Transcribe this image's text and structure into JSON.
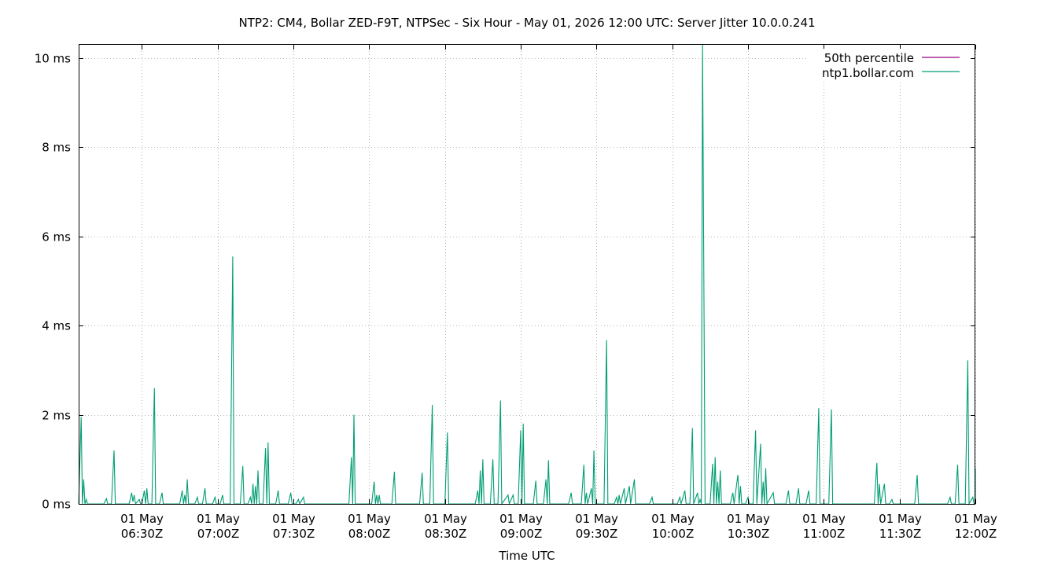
{
  "chart_data": {
    "type": "line",
    "title": "NTP2: CM4, Bollar ZED-F9T, NTPSec - Six Hour - May 01, 2026 12:00 UTC: Server Jitter 10.0.0.241",
    "xlabel": "Time UTC",
    "ylabel": "",
    "x_range": [
      "06:05",
      "12:00"
    ],
    "ylim": [
      0,
      10.3
    ],
    "yticks": [
      {
        "value": 0,
        "label": "0 ms"
      },
      {
        "value": 2,
        "label": "2 ms"
      },
      {
        "value": 4,
        "label": "4 ms"
      },
      {
        "value": 6,
        "label": "6 ms"
      },
      {
        "value": 8,
        "label": "8 ms"
      },
      {
        "value": 10,
        "label": "10 ms"
      }
    ],
    "xticks": [
      {
        "time": "06:30",
        "line1": "01 May",
        "line2": "06:30Z"
      },
      {
        "time": "07:00",
        "line1": "01 May",
        "line2": "07:00Z"
      },
      {
        "time": "07:30",
        "line1": "01 May",
        "line2": "07:30Z"
      },
      {
        "time": "08:00",
        "line1": "01 May",
        "line2": "08:00Z"
      },
      {
        "time": "08:30",
        "line1": "01 May",
        "line2": "08:30Z"
      },
      {
        "time": "09:00",
        "line1": "01 May",
        "line2": "09:00Z"
      },
      {
        "time": "09:30",
        "line1": "01 May",
        "line2": "09:30Z"
      },
      {
        "time": "10:00",
        "line1": "01 May",
        "line2": "10:00Z"
      },
      {
        "time": "10:30",
        "line1": "01 May",
        "line2": "10:30Z"
      },
      {
        "time": "11:00",
        "line1": "01 May",
        "line2": "11:00Z"
      },
      {
        "time": "11:30",
        "line1": "01 May",
        "line2": "11:30Z"
      },
      {
        "time": "12:00",
        "line1": "01 May",
        "line2": "12:00Z"
      }
    ],
    "grid": true,
    "legend_position": "top-right",
    "series": [
      {
        "name": "50th percentile",
        "color": "#94007f",
        "points": []
      },
      {
        "name": "ntp1.bollar.com",
        "color": "#009e73",
        "points": [
          [
            "06:05",
            0.0
          ],
          [
            "06:06",
            1.95
          ],
          [
            "06:06.5",
            0.0
          ],
          [
            "06:07",
            0.55
          ],
          [
            "06:07.5",
            0.0
          ],
          [
            "06:08",
            0.1
          ],
          [
            "06:08.5",
            0.0
          ],
          [
            "06:15",
            0.0
          ],
          [
            "06:16",
            0.12
          ],
          [
            "06:16.5",
            0.0
          ],
          [
            "06:18",
            0.0
          ],
          [
            "06:19",
            1.2
          ],
          [
            "06:19.5",
            0.0
          ],
          [
            "06:25",
            0.0
          ],
          [
            "06:26",
            0.25
          ],
          [
            "06:26.5",
            0.05
          ],
          [
            "06:27",
            0.2
          ],
          [
            "06:27.5",
            0.0
          ],
          [
            "06:29",
            0.1
          ],
          [
            "06:29.5",
            0.0
          ],
          [
            "06:30",
            0.0
          ],
          [
            "06:31",
            0.3
          ],
          [
            "06:31.5",
            0.0
          ],
          [
            "06:32",
            0.35
          ],
          [
            "06:32.5",
            0.0
          ],
          [
            "06:34",
            0.0
          ],
          [
            "06:35",
            2.6
          ],
          [
            "06:35.5",
            0.0
          ],
          [
            "06:37",
            0.0
          ],
          [
            "06:38",
            0.25
          ],
          [
            "06:38.5",
            0.0
          ],
          [
            "06:45",
            0.0
          ],
          [
            "06:46",
            0.3
          ],
          [
            "06:46.5",
            0.0
          ],
          [
            "06:47",
            0.2
          ],
          [
            "06:47.5",
            0.0
          ],
          [
            "06:48",
            0.55
          ],
          [
            "06:48.5",
            0.0
          ],
          [
            "06:51",
            0.0
          ],
          [
            "06:52",
            0.15
          ],
          [
            "06:52.5",
            0.0
          ],
          [
            "06:54",
            0.0
          ],
          [
            "06:55",
            0.35
          ],
          [
            "06:55.5",
            0.0
          ],
          [
            "06:58",
            0.0
          ],
          [
            "06:59",
            0.15
          ],
          [
            "06:59.5",
            0.0
          ],
          [
            "07:01",
            0.0
          ],
          [
            "07:02",
            0.2
          ],
          [
            "07:02.5",
            0.0
          ],
          [
            "07:05",
            0.0
          ],
          [
            "07:06",
            5.55
          ],
          [
            "07:06.5",
            0.0
          ],
          [
            "07:09",
            0.0
          ],
          [
            "07:10",
            0.85
          ],
          [
            "07:10.5",
            0.0
          ],
          [
            "07:12",
            0.0
          ],
          [
            "07:13",
            0.15
          ],
          [
            "07:13.5",
            0.0
          ],
          [
            "07:14",
            0.45
          ],
          [
            "07:14.5",
            0.0
          ],
          [
            "07:15",
            0.4
          ],
          [
            "07:15.5",
            0.0
          ],
          [
            "07:16",
            0.75
          ],
          [
            "07:16.5",
            0.0
          ],
          [
            "07:18",
            0.0
          ],
          [
            "07:19",
            1.25
          ],
          [
            "07:19.5",
            0.0
          ],
          [
            "07:20",
            1.38
          ],
          [
            "07:20.5",
            0.0
          ],
          [
            "07:23",
            0.0
          ],
          [
            "07:24",
            0.3
          ],
          [
            "07:24.5",
            0.0
          ],
          [
            "07:28",
            0.0
          ],
          [
            "07:29",
            0.25
          ],
          [
            "07:29.5",
            0.0
          ],
          [
            "07:31",
            0.0
          ],
          [
            "07:32",
            0.1
          ],
          [
            "07:32.5",
            0.0
          ],
          [
            "07:34",
            0.15
          ],
          [
            "07:34.5",
            0.0
          ],
          [
            "07:52",
            0.0
          ],
          [
            "07:53",
            1.05
          ],
          [
            "07:53.5",
            0.0
          ],
          [
            "07:54",
            2.0
          ],
          [
            "07:54.5",
            0.0
          ],
          [
            "08:01",
            0.0
          ],
          [
            "08:02",
            0.5
          ],
          [
            "08:02.5",
            0.0
          ],
          [
            "08:03",
            0.2
          ],
          [
            "08:03.5",
            0.0
          ],
          [
            "08:04",
            0.2
          ],
          [
            "08:04.5",
            0.0
          ],
          [
            "08:09",
            0.0
          ],
          [
            "08:10",
            0.72
          ],
          [
            "08:10.5",
            0.0
          ],
          [
            "08:20",
            0.0
          ],
          [
            "08:21",
            0.7
          ],
          [
            "08:21.5",
            0.0
          ],
          [
            "08:24",
            0.0
          ],
          [
            "08:25",
            2.22
          ],
          [
            "08:25.5",
            0.0
          ],
          [
            "08:30",
            0.0
          ],
          [
            "08:31",
            1.6
          ],
          [
            "08:31.5",
            0.0
          ],
          [
            "08:42",
            0.0
          ],
          [
            "08:43",
            0.3
          ],
          [
            "08:43.5",
            0.0
          ],
          [
            "08:44",
            0.75
          ],
          [
            "08:44.5",
            0.0
          ],
          [
            "08:45",
            1.0
          ],
          [
            "08:45.5",
            0.0
          ],
          [
            "08:48",
            0.0
          ],
          [
            "08:49",
            1.0
          ],
          [
            "08:49.5",
            0.0
          ],
          [
            "08:51",
            0.0
          ],
          [
            "08:52",
            2.32
          ],
          [
            "08:52.5",
            0.0
          ],
          [
            "08:55",
            0.2
          ],
          [
            "08:55.5",
            0.0
          ],
          [
            "08:57",
            0.2
          ],
          [
            "08:57.5",
            0.0
          ],
          [
            "08:59",
            0.0
          ],
          [
            "09:00",
            1.65
          ],
          [
            "09:00.5",
            0.0
          ],
          [
            "09:01",
            1.8
          ],
          [
            "09:01.5",
            0.0
          ],
          [
            "09:05",
            0.0
          ],
          [
            "09:06",
            0.52
          ],
          [
            "09:06.5",
            0.0
          ],
          [
            "09:09",
            0.0
          ],
          [
            "09:10",
            0.55
          ],
          [
            "09:10.5",
            0.0
          ],
          [
            "09:11",
            0.98
          ],
          [
            "09:11.5",
            0.0
          ],
          [
            "09:19",
            0.0
          ],
          [
            "09:20",
            0.25
          ],
          [
            "09:20.5",
            0.0
          ],
          [
            "09:24",
            0.0
          ],
          [
            "09:25",
            0.88
          ],
          [
            "09:25.5",
            0.0
          ],
          [
            "09:26",
            0.25
          ],
          [
            "09:26.5",
            0.0
          ],
          [
            "09:28",
            0.35
          ],
          [
            "09:28.5",
            0.0
          ],
          [
            "09:29",
            1.2
          ],
          [
            "09:29.5",
            0.0
          ],
          [
            "09:33",
            0.0
          ],
          [
            "09:34",
            3.67
          ],
          [
            "09:34.5",
            0.0
          ],
          [
            "09:37",
            0.0
          ],
          [
            "09:38",
            0.15
          ],
          [
            "09:38.5",
            0.0
          ],
          [
            "09:39",
            0.2
          ],
          [
            "09:39.5",
            0.0
          ],
          [
            "09:41",
            0.35
          ],
          [
            "09:41.5",
            0.0
          ],
          [
            "09:43",
            0.4
          ],
          [
            "09:43.5",
            0.0
          ],
          [
            "09:45",
            0.55
          ],
          [
            "09:45.5",
            0.0
          ],
          [
            "09:51",
            0.0
          ],
          [
            "09:52",
            0.15
          ],
          [
            "09:52.5",
            0.0
          ],
          [
            "10:02",
            0.0
          ],
          [
            "10:03",
            0.15
          ],
          [
            "10:03.5",
            0.0
          ],
          [
            "10:05",
            0.3
          ],
          [
            "10:05.5",
            0.0
          ],
          [
            "10:07",
            0.0
          ],
          [
            "10:08",
            1.7
          ],
          [
            "10:08.5",
            0.0
          ],
          [
            "10:10",
            0.25
          ],
          [
            "10:10.5",
            0.0
          ],
          [
            "10:11",
            0.1
          ],
          [
            "10:11.5",
            0.0
          ],
          [
            "10:12",
            10.3
          ],
          [
            "10:13",
            0.0
          ],
          [
            "10:15",
            0.0
          ],
          [
            "10:16",
            0.9
          ],
          [
            "10:16.5",
            0.0
          ],
          [
            "10:17",
            1.05
          ],
          [
            "10:17.5",
            0.0
          ],
          [
            "10:18",
            0.5
          ],
          [
            "10:18.5",
            0.0
          ],
          [
            "10:19",
            0.75
          ],
          [
            "10:19.5",
            0.0
          ],
          [
            "10:23",
            0.0
          ],
          [
            "10:24",
            0.25
          ],
          [
            "10:24.5",
            0.0
          ],
          [
            "10:26",
            0.65
          ],
          [
            "10:26.5",
            0.0
          ],
          [
            "10:27",
            0.4
          ],
          [
            "10:27.5",
            0.0
          ],
          [
            "10:29",
            0.0
          ],
          [
            "10:30",
            0.15
          ],
          [
            "10:30.5",
            0.0
          ],
          [
            "10:32",
            0.0
          ],
          [
            "10:33",
            1.65
          ],
          [
            "10:33.5",
            0.0
          ],
          [
            "10:35",
            1.35
          ],
          [
            "10:35.5",
            0.0
          ],
          [
            "10:36",
            0.5
          ],
          [
            "10:36.5",
            0.0
          ],
          [
            "10:37",
            0.8
          ],
          [
            "10:37.5",
            0.0
          ],
          [
            "10:40",
            0.25
          ],
          [
            "10:40.5",
            0.0
          ],
          [
            "10:45",
            0.0
          ],
          [
            "10:46",
            0.3
          ],
          [
            "10:46.5",
            0.0
          ],
          [
            "10:49",
            0.0
          ],
          [
            "10:50",
            0.35
          ],
          [
            "10:50.5",
            0.0
          ],
          [
            "10:53",
            0.0
          ],
          [
            "10:54",
            0.3
          ],
          [
            "10:54.5",
            0.0
          ],
          [
            "10:57",
            0.0
          ],
          [
            "10:58",
            2.15
          ],
          [
            "10:58.5",
            0.0
          ],
          [
            "11:02",
            0.0
          ],
          [
            "11:03",
            2.12
          ],
          [
            "11:03.5",
            0.0
          ],
          [
            "11:20",
            0.0
          ],
          [
            "11:21",
            0.92
          ],
          [
            "11:21.5",
            0.0
          ],
          [
            "11:22",
            0.45
          ],
          [
            "11:22.5",
            0.0
          ],
          [
            "11:24",
            0.45
          ],
          [
            "11:24.5",
            0.0
          ],
          [
            "11:26",
            0.0
          ],
          [
            "11:27",
            0.1
          ],
          [
            "11:27.5",
            0.0
          ],
          [
            "11:36",
            0.0
          ],
          [
            "11:37",
            0.65
          ],
          [
            "11:37.5",
            0.0
          ],
          [
            "11:49",
            0.0
          ],
          [
            "11:50",
            0.15
          ],
          [
            "11:50.5",
            0.0
          ],
          [
            "11:52",
            0.0
          ],
          [
            "11:53",
            0.88
          ],
          [
            "11:53.5",
            0.0
          ],
          [
            "11:56",
            0.0
          ],
          [
            "11:57",
            3.22
          ],
          [
            "11:57.5",
            0.0
          ],
          [
            "11:59",
            0.15
          ],
          [
            "11:59.5",
            0.0
          ],
          [
            "12:00",
            0.0
          ],
          [
            "12:01",
            0.45
          ],
          [
            "12:01.5",
            0.0
          ],
          [
            "12:02",
            0.1
          ],
          [
            "12:02.5",
            0.0
          ],
          [
            "12:03",
            0.45
          ],
          [
            "12:03.5",
            0.0
          ],
          [
            "12:05",
            0.0
          ],
          [
            "12:06",
            0.8
          ]
        ]
      }
    ]
  }
}
